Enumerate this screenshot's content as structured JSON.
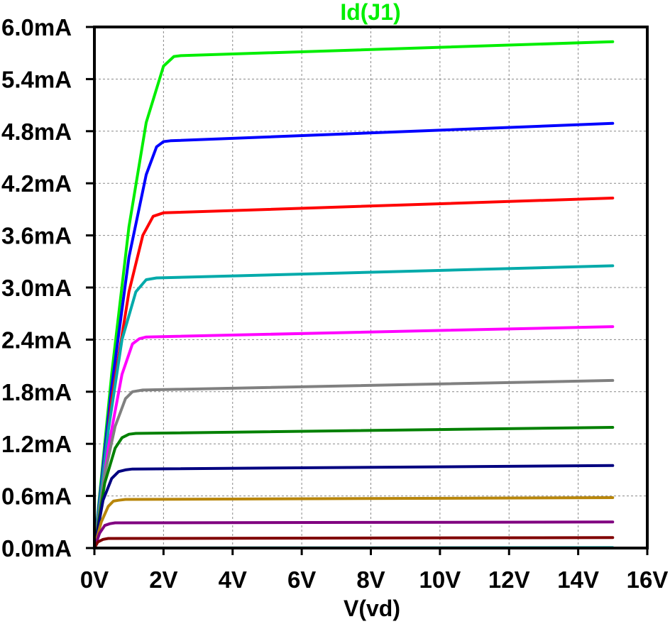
{
  "chart_data": {
    "type": "line",
    "title": "Id(J1)",
    "title_color": "#00ee00",
    "xlabel": "V(vd)",
    "ylabel": "",
    "xlim": [
      0,
      16
    ],
    "ylim": [
      0,
      6.0
    ],
    "grid": true,
    "grid_style": "dotted",
    "x_ticks": [
      0,
      2,
      4,
      6,
      8,
      10,
      12,
      14,
      16
    ],
    "x_tick_labels": [
      "0V",
      "2V",
      "4V",
      "6V",
      "8V",
      "10V",
      "12V",
      "14V",
      "16V"
    ],
    "y_ticks": [
      0,
      0.6,
      1.2,
      1.8,
      2.4,
      3.0,
      3.6,
      4.2,
      4.8,
      5.4,
      6.0
    ],
    "y_tick_labels": [
      "0.0mA",
      "0.6mA",
      "1.2mA",
      "1.8mA",
      "2.4mA",
      "3.0mA",
      "3.6mA",
      "4.2mA",
      "4.8mA",
      "5.4mA",
      "6.0mA"
    ],
    "x_units": "V",
    "y_units": "mA",
    "series": [
      {
        "color": "#00ee00",
        "x": [
          0,
          0.5,
          1.0,
          1.5,
          2.0,
          2.3,
          2.5,
          15
        ],
        "y": [
          0,
          2.0,
          3.7,
          4.9,
          5.55,
          5.66,
          5.67,
          5.83
        ]
      },
      {
        "color": "#0000ff",
        "x": [
          0,
          0.5,
          1.0,
          1.5,
          1.8,
          2.0,
          2.2,
          15
        ],
        "y": [
          0,
          1.85,
          3.35,
          4.3,
          4.62,
          4.68,
          4.69,
          4.89
        ]
      },
      {
        "color": "#ff0000",
        "x": [
          0,
          0.5,
          1.0,
          1.4,
          1.7,
          2.0,
          15
        ],
        "y": [
          0,
          1.7,
          2.95,
          3.6,
          3.82,
          3.86,
          4.03
        ]
      },
      {
        "color": "#00aaaa",
        "x": [
          0,
          0.4,
          0.8,
          1.2,
          1.5,
          1.8,
          15
        ],
        "y": [
          0,
          1.35,
          2.4,
          2.95,
          3.09,
          3.11,
          3.25
        ]
      },
      {
        "color": "#ff00ff",
        "x": [
          0,
          0.4,
          0.8,
          1.1,
          1.3,
          1.5,
          15
        ],
        "y": [
          0,
          1.15,
          2.0,
          2.35,
          2.41,
          2.43,
          2.55
        ]
      },
      {
        "color": "#808080",
        "x": [
          0,
          0.3,
          0.6,
          0.9,
          1.1,
          1.4,
          15
        ],
        "y": [
          0,
          0.85,
          1.4,
          1.72,
          1.8,
          1.82,
          1.93
        ]
      },
      {
        "color": "#008000",
        "x": [
          0,
          0.3,
          0.6,
          0.8,
          1.0,
          1.2,
          15
        ],
        "y": [
          0,
          0.75,
          1.15,
          1.27,
          1.31,
          1.32,
          1.39
        ]
      },
      {
        "color": "#000080",
        "x": [
          0,
          0.25,
          0.5,
          0.7,
          0.9,
          1.1,
          15
        ],
        "y": [
          0,
          0.55,
          0.8,
          0.88,
          0.9,
          0.91,
          0.95
        ]
      },
      {
        "color": "#b8860b",
        "x": [
          0,
          0.2,
          0.4,
          0.55,
          0.7,
          0.9,
          15
        ],
        "y": [
          0,
          0.3,
          0.48,
          0.54,
          0.55,
          0.56,
          0.58
        ]
      },
      {
        "color": "#800080",
        "x": [
          0,
          0.15,
          0.3,
          0.45,
          0.6,
          15
        ],
        "y": [
          0,
          0.17,
          0.26,
          0.28,
          0.29,
          0.3
        ]
      },
      {
        "color": "#800000",
        "x": [
          0,
          0.1,
          0.25,
          0.4,
          15
        ],
        "y": [
          0,
          0.07,
          0.1,
          0.11,
          0.12
        ]
      },
      {
        "color": "#00aaaa",
        "x": [
          0,
          15
        ],
        "y": [
          0,
          0.005
        ]
      }
    ]
  }
}
